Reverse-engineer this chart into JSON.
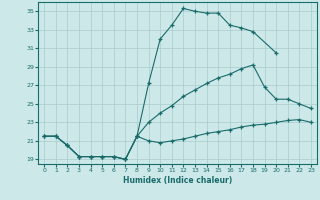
{
  "xlabel": "Humidex (Indice chaleur)",
  "bg_color": "#cce8e8",
  "grid_color": "#aacccc",
  "line_color": "#1a6b6b",
  "xlim": [
    -0.5,
    23.5
  ],
  "ylim": [
    18.5,
    36
  ],
  "xticks": [
    0,
    1,
    2,
    3,
    4,
    5,
    6,
    7,
    8,
    9,
    10,
    11,
    12,
    13,
    14,
    15,
    16,
    17,
    18,
    19,
    20,
    21,
    22,
    23
  ],
  "yticks": [
    19,
    21,
    23,
    25,
    27,
    29,
    31,
    33,
    35
  ],
  "curve1_x": [
    0,
    1,
    2,
    3,
    4,
    5,
    6,
    7,
    8,
    9,
    10,
    11,
    12,
    13,
    14,
    15,
    16,
    17,
    18,
    20
  ],
  "curve1_y": [
    21.5,
    21.5,
    20.5,
    19.3,
    19.3,
    19.3,
    19.3,
    19.0,
    21.5,
    27.2,
    32.0,
    33.5,
    35.3,
    35.0,
    34.8,
    34.8,
    33.5,
    33.2,
    32.8,
    30.5
  ],
  "curve2_x": [
    0,
    1,
    2,
    3,
    4,
    5,
    6,
    7,
    8,
    9,
    10,
    11,
    12,
    13,
    14,
    15,
    16,
    17,
    18,
    19,
    20,
    21,
    22,
    23
  ],
  "curve2_y": [
    21.5,
    21.5,
    20.5,
    19.3,
    19.3,
    19.3,
    19.3,
    19.0,
    21.5,
    23.0,
    24.0,
    24.8,
    25.8,
    26.5,
    27.2,
    27.8,
    28.2,
    28.8,
    29.2,
    26.8,
    25.5,
    25.5,
    25.0,
    24.5
  ],
  "curve3_x": [
    0,
    1,
    2,
    3,
    4,
    5,
    6,
    7,
    8,
    9,
    10,
    11,
    12,
    13,
    14,
    15,
    16,
    17,
    18,
    19,
    20,
    21,
    22,
    23
  ],
  "curve3_y": [
    21.5,
    21.5,
    20.5,
    19.3,
    19.3,
    19.3,
    19.3,
    19.0,
    21.5,
    21.0,
    20.8,
    21.0,
    21.2,
    21.5,
    21.8,
    22.0,
    22.2,
    22.5,
    22.7,
    22.8,
    23.0,
    23.2,
    23.3,
    23.0
  ]
}
